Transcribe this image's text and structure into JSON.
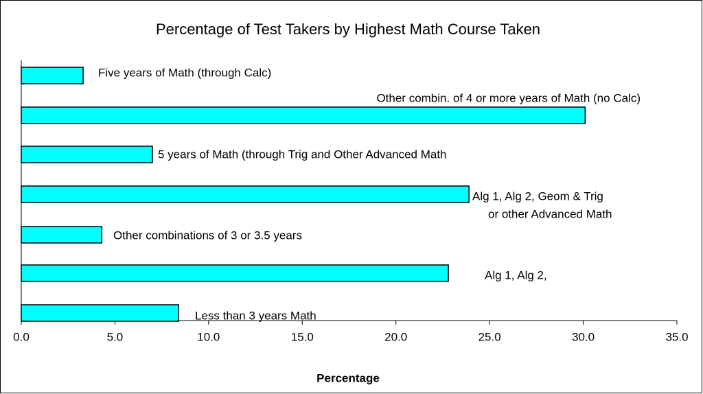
{
  "chart_data": {
    "type": "bar",
    "orientation": "horizontal",
    "title": "Percentage of Test Takers by Highest Math Course Taken",
    "x_label": "Percentage",
    "categories": [
      "Five years of Math (through Calc)",
      "Other combin. of 4 or more years of Math (no Calc)",
      "5 years of Math (through Trig and Other Advanced Math",
      [
        "Alg 1, Alg 2, Geom & Trig",
        "or other Advanced Math"
      ],
      "Other combinations of 3 or 3.5 years",
      "Alg 1, Alg 2,",
      "Less than 3 years Math"
    ],
    "values": [
      3.3,
      30.1,
      7.0,
      23.9,
      4.3,
      22.8,
      8.4
    ],
    "color": "#00ffff",
    "xlim": [
      0,
      35
    ],
    "xticks": [
      {
        "value": 0,
        "label": "0.0"
      },
      {
        "value": 5,
        "label": "5.0"
      },
      {
        "value": 10,
        "label": "10.0"
      },
      {
        "value": 15,
        "label": "15.0"
      },
      {
        "value": 20,
        "label": "20.0"
      },
      {
        "value": 25,
        "label": "25.0"
      },
      {
        "value": 30,
        "label": "30.0"
      },
      {
        "value": 35,
        "label": "35.0"
      }
    ],
    "grid": false
  }
}
